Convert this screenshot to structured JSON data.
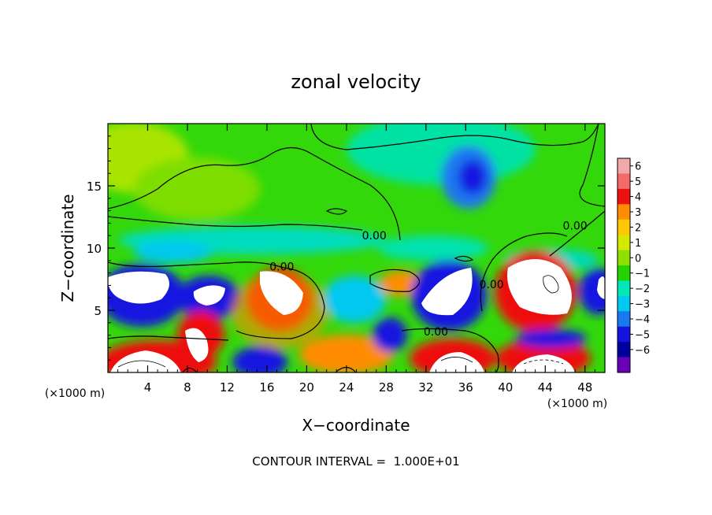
{
  "chart_data": {
    "type": "heatmap",
    "title": "zonal velocity",
    "xlabel": "X−coordinate",
    "ylabel": "Z−coordinate",
    "x_units": "(×1000 m)",
    "y_units": "(×1000 m)",
    "xlim": [
      0,
      50
    ],
    "ylim": [
      0,
      20
    ],
    "x_ticks": [
      4,
      8,
      12,
      16,
      20,
      24,
      28,
      32,
      36,
      40,
      44,
      48
    ],
    "y_ticks": [
      5,
      10,
      15
    ],
    "contour_labels": [
      {
        "text": "0.00",
        "x": 26.8,
        "z": 11.0
      },
      {
        "text": "0.00",
        "x": 17.5,
        "z": 8.5
      },
      {
        "text": "0.00",
        "x": 33.0,
        "z": 3.3
      },
      {
        "text": "0.00",
        "x": 38.6,
        "z": 7.1
      },
      {
        "text": "0.00",
        "x": 47.0,
        "z": 11.8
      }
    ],
    "footer": "CONTOUR INTERVAL =  1.000E+01",
    "colorbar": {
      "levels": [
        6,
        5,
        4,
        3,
        2,
        1,
        0,
        -1,
        -2,
        -3,
        -4,
        -5,
        -6
      ],
      "level_labels": [
        "6",
        "5",
        "4",
        "3",
        "2",
        "1",
        "0",
        "−1",
        "−2",
        "−3",
        "−4",
        "−5",
        "−6"
      ],
      "colors": [
        "#f2a8a8",
        "#f46a6a",
        "#ee1111",
        "#ff8c00",
        "#ffc800",
        "#d4e800",
        "#8ee000",
        "#22d500",
        "#00e8b8",
        "#00c8f0",
        "#1a78f0",
        "#1414e0",
        "#0000a0",
        "#6a00b8"
      ]
    },
    "grid": false,
    "legend": "right"
  }
}
